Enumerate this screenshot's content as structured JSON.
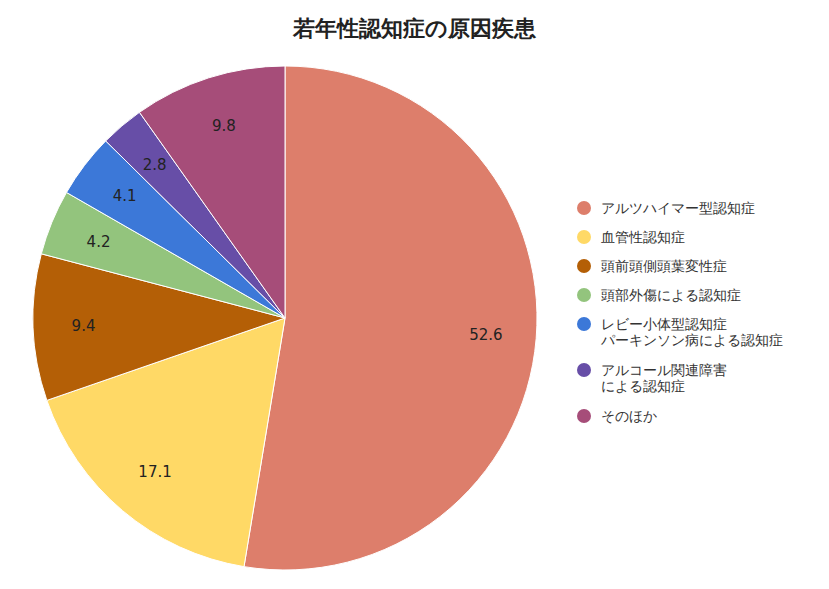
{
  "chart_data": {
    "type": "pie",
    "title": "若年性認知症の原因疾患",
    "categories": [
      "アルツハイマー型認知症",
      "血管性認知症",
      "頭前頭側頭葉変性症",
      "頭部外傷による認知症",
      "レビー小体型認知症\nパーキンソン病による認知症",
      "アルコール関連障害\nによる認知症",
      "そのほか"
    ],
    "values": [
      52.6,
      17.1,
      9.4,
      4.2,
      4.1,
      2.8,
      9.8
    ],
    "colors": [
      "#dd7e6b",
      "#ffd966",
      "#b45f06",
      "#93c47d",
      "#3c78d8",
      "#674ea7",
      "#a64d79"
    ],
    "data_labels": true,
    "legend": "right"
  }
}
